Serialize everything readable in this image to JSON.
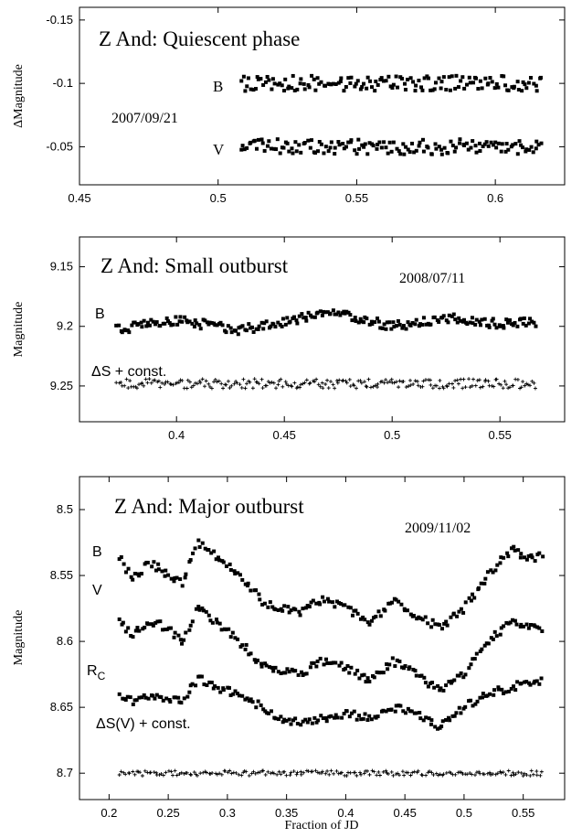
{
  "chart_data": [
    {
      "type": "scatter",
      "title": "Z And:  Quiescent phase",
      "date": "2007/09/21",
      "ylabel": "ΔMagnitude",
      "xlabel": "",
      "xlim": [
        0.45,
        0.625
      ],
      "ylim": [
        -0.16,
        -0.02
      ],
      "y_reversed": true,
      "xticks": [
        0.45,
        0.5,
        0.55,
        0.6
      ],
      "xtick_labels": [
        "0.45",
        "0.5",
        "0.55",
        "0.6"
      ],
      "yticks": [
        -0.15,
        -0.1,
        -0.05
      ],
      "ytick_labels": [
        "-0.15",
        "-0.1",
        "-0.05"
      ],
      "series": [
        {
          "name": "B",
          "marker": "square",
          "x_range": [
            0.508,
            0.617
          ],
          "level": -0.1,
          "scatter": 0.006,
          "count": 150
        },
        {
          "name": "V",
          "marker": "square",
          "x_range": [
            0.508,
            0.617
          ],
          "level": -0.05,
          "scatter": 0.006,
          "count": 150
        }
      ]
    },
    {
      "type": "scatter",
      "title": "Z And:  Small outburst",
      "date": "2008/07/11",
      "ylabel": "Magnitude",
      "xlabel": "",
      "xlim": [
        0.355,
        0.58
      ],
      "ylim": [
        9.125,
        9.28
      ],
      "y_reversed": true,
      "xticks": [
        0.4,
        0.45,
        0.5,
        0.55
      ],
      "xtick_labels": [
        "0.4",
        "0.45",
        "0.5",
        "0.55"
      ],
      "yticks": [
        9.15,
        9.2,
        9.25
      ],
      "ytick_labels": [
        "9.15",
        "9.2",
        "9.25"
      ],
      "series": [
        {
          "name": "B",
          "marker": "square",
          "x_range": [
            0.372,
            0.567
          ],
          "scatter": 0.004,
          "count": 230,
          "trend_x": [
            0.372,
            0.4,
            0.43,
            0.45,
            0.47,
            0.5,
            0.525,
            0.55,
            0.567
          ],
          "trend_y": [
            9.203,
            9.195,
            9.203,
            9.196,
            9.188,
            9.2,
            9.193,
            9.198,
            9.196
          ]
        },
        {
          "name": "ΔS + const.",
          "marker": "plus",
          "x_range": [
            0.372,
            0.567
          ],
          "level": 9.248,
          "scatter": 0.004,
          "count": 230
        }
      ]
    },
    {
      "type": "scatter",
      "title": "Z And:  Major outburst",
      "date": "2009/11/02",
      "ylabel": "Magnitude",
      "xlabel": "Fraction of JD",
      "xlim": [
        0.175,
        0.585
      ],
      "ylim": [
        8.475,
        8.72
      ],
      "y_reversed": true,
      "xticks": [
        0.2,
        0.25,
        0.3,
        0.35,
        0.4,
        0.45,
        0.5,
        0.55
      ],
      "xtick_labels": [
        "0.2",
        "0.25",
        "0.3",
        "0.35",
        "0.4",
        "0.45",
        "0.5",
        "0.55"
      ],
      "yticks": [
        8.5,
        8.55,
        8.6,
        8.65,
        8.7
      ],
      "ytick_labels": [
        "8.5",
        "8.55",
        "8.6",
        "8.65",
        "8.7"
      ],
      "series": [
        {
          "name": "B",
          "marker": "square",
          "x_range": [
            0.208,
            0.567
          ],
          "scatter": 0.003,
          "count": 190,
          "trend_x": [
            0.208,
            0.22,
            0.235,
            0.25,
            0.262,
            0.275,
            0.29,
            0.31,
            0.33,
            0.36,
            0.38,
            0.4,
            0.42,
            0.44,
            0.46,
            0.48,
            0.5,
            0.52,
            0.54,
            0.555,
            0.567
          ],
          "trend_y": [
            8.535,
            8.553,
            8.54,
            8.55,
            8.555,
            8.525,
            8.535,
            8.55,
            8.57,
            8.578,
            8.568,
            8.575,
            8.585,
            8.57,
            8.58,
            8.59,
            8.575,
            8.55,
            8.53,
            8.537,
            8.535
          ]
        },
        {
          "name": "V",
          "marker": "square",
          "x_range": [
            0.208,
            0.567
          ],
          "scatter": 0.003,
          "count": 190,
          "trend_x": [
            0.208,
            0.22,
            0.235,
            0.25,
            0.262,
            0.275,
            0.29,
            0.31,
            0.33,
            0.36,
            0.38,
            0.4,
            0.42,
            0.44,
            0.46,
            0.48,
            0.5,
            0.52,
            0.54,
            0.555,
            0.567
          ],
          "trend_y": [
            8.585,
            8.595,
            8.585,
            8.59,
            8.6,
            8.575,
            8.585,
            8.6,
            8.618,
            8.625,
            8.615,
            8.62,
            8.63,
            8.615,
            8.625,
            8.638,
            8.625,
            8.6,
            8.585,
            8.59,
            8.59
          ]
        },
        {
          "name": "R_C",
          "marker": "square",
          "x_range": [
            0.208,
            0.567
          ],
          "scatter": 0.003,
          "count": 190,
          "trend_x": [
            0.208,
            0.22,
            0.235,
            0.25,
            0.262,
            0.275,
            0.29,
            0.31,
            0.33,
            0.35,
            0.37,
            0.4,
            0.42,
            0.44,
            0.46,
            0.48,
            0.5,
            0.52,
            0.54,
            0.555,
            0.567
          ],
          "trend_y": [
            8.64,
            8.645,
            8.64,
            8.645,
            8.645,
            8.628,
            8.635,
            8.64,
            8.65,
            8.662,
            8.66,
            8.655,
            8.658,
            8.65,
            8.655,
            8.665,
            8.65,
            8.64,
            8.635,
            8.63,
            8.63
          ]
        },
        {
          "name": "ΔS(V) + const.",
          "marker": "plus",
          "x_range": [
            0.208,
            0.567
          ],
          "level": 8.7,
          "scatter": 0.002,
          "count": 200
        }
      ]
    }
  ]
}
